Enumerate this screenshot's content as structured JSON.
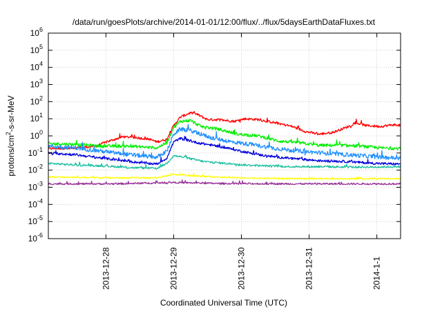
{
  "chart_data": {
    "type": "line",
    "title": "/data/run/goesPlots/archive/2014-01-01/12:00/flux/../flux/5daysEarthDataFluxes.txt",
    "xlabel": "Coordinated Universal Time (UTC)",
    "ylabel_base": "protons/cm",
    "ylabel_sup": "2",
    "ylabel_rest": "-s-sr-MeV",
    "y_scale": "log",
    "ylim_exp": [
      -6,
      6
    ],
    "y_ticks": [
      {
        "base": "10",
        "exp": "-6",
        "value": -6
      },
      {
        "base": "10",
        "exp": "-5",
        "value": -5
      },
      {
        "base": "10",
        "exp": "-4",
        "value": -4
      },
      {
        "base": "10",
        "exp": "-3",
        "value": -3
      },
      {
        "base": "10",
        "exp": "-2",
        "value": -2
      },
      {
        "base": "10",
        "exp": "-1",
        "value": -1
      },
      {
        "base": "10",
        "exp": "0",
        "value": 0
      },
      {
        "base": "10",
        "exp": "1",
        "value": 1
      },
      {
        "base": "10",
        "exp": "2",
        "value": 2
      },
      {
        "base": "10",
        "exp": "3",
        "value": 3
      },
      {
        "base": "10",
        "exp": "4",
        "value": 4
      },
      {
        "base": "10",
        "exp": "5",
        "value": 5
      },
      {
        "base": "10",
        "exp": "6",
        "value": 6
      }
    ],
    "xlim_days": [
      0,
      5.2
    ],
    "x_ticks": [
      {
        "label": "2013-12-28",
        "value": 0.85
      },
      {
        "label": "2013-12-29",
        "value": 1.85
      },
      {
        "label": "2013-12-30",
        "value": 2.85
      },
      {
        "label": "2013-12-31",
        "value": 3.85
      },
      {
        "label": "2014-1-1",
        "value": 4.85
      }
    ],
    "grid": true,
    "series": [
      {
        "color": "#ff0000",
        "noise": 0.07,
        "points": [
          [
            0,
            -0.75
          ],
          [
            0.4,
            -0.7
          ],
          [
            0.7,
            -0.6
          ],
          [
            0.9,
            -0.3
          ],
          [
            1.1,
            -0.05
          ],
          [
            1.3,
            -0.1
          ],
          [
            1.5,
            -0.2
          ],
          [
            1.6,
            -0.35
          ],
          [
            1.75,
            -0.2
          ],
          [
            1.85,
            0.6
          ],
          [
            1.95,
            1.1
          ],
          [
            2.1,
            1.35
          ],
          [
            2.2,
            1.25
          ],
          [
            2.35,
            0.95
          ],
          [
            2.5,
            0.95
          ],
          [
            2.75,
            0.85
          ],
          [
            2.9,
            1.0
          ],
          [
            3.1,
            0.95
          ],
          [
            3.3,
            0.8
          ],
          [
            3.6,
            0.55
          ],
          [
            3.8,
            0.25
          ],
          [
            4.0,
            0.1
          ],
          [
            4.2,
            0.2
          ],
          [
            4.4,
            0.5
          ],
          [
            4.55,
            0.75
          ],
          [
            4.7,
            0.6
          ],
          [
            4.9,
            0.55
          ],
          [
            5.1,
            0.65
          ],
          [
            5.2,
            0.6
          ]
        ]
      },
      {
        "color": "#00ee00",
        "noise": 0.09,
        "points": [
          [
            0,
            -0.45
          ],
          [
            0.4,
            -0.5
          ],
          [
            0.8,
            -0.6
          ],
          [
            1.2,
            -0.6
          ],
          [
            1.6,
            -0.7
          ],
          [
            1.75,
            -0.4
          ],
          [
            1.85,
            0.5
          ],
          [
            1.95,
            0.85
          ],
          [
            2.1,
            0.9
          ],
          [
            2.25,
            0.55
          ],
          [
            2.5,
            0.4
          ],
          [
            2.8,
            0.1
          ],
          [
            3.1,
            0.0
          ],
          [
            3.4,
            -0.3
          ],
          [
            3.7,
            -0.4
          ],
          [
            4.0,
            -0.55
          ],
          [
            4.3,
            -0.55
          ],
          [
            4.6,
            -0.6
          ],
          [
            4.9,
            -0.7
          ],
          [
            5.2,
            -0.75
          ]
        ]
      },
      {
        "color": "#1e90ff",
        "noise": 0.12,
        "points": [
          [
            0,
            -0.6
          ],
          [
            0.4,
            -0.7
          ],
          [
            0.8,
            -0.9
          ],
          [
            1.2,
            -1.1
          ],
          [
            1.6,
            -1.25
          ],
          [
            1.75,
            -0.9
          ],
          [
            1.85,
            0.1
          ],
          [
            1.95,
            0.4
          ],
          [
            2.1,
            0.3
          ],
          [
            2.4,
            -0.1
          ],
          [
            2.7,
            -0.35
          ],
          [
            3.0,
            -0.5
          ],
          [
            3.3,
            -0.7
          ],
          [
            3.6,
            -0.85
          ],
          [
            3.9,
            -0.95
          ],
          [
            4.2,
            -1.05
          ],
          [
            4.6,
            -1.15
          ],
          [
            4.9,
            -1.25
          ],
          [
            5.2,
            -1.3
          ]
        ]
      },
      {
        "color": "#0000dd",
        "noise": 0.07,
        "points": [
          [
            0,
            -1.0
          ],
          [
            0.4,
            -1.1
          ],
          [
            0.8,
            -1.3
          ],
          [
            1.2,
            -1.5
          ],
          [
            1.6,
            -1.65
          ],
          [
            1.75,
            -1.3
          ],
          [
            1.85,
            -0.35
          ],
          [
            1.95,
            -0.15
          ],
          [
            2.2,
            -0.4
          ],
          [
            2.5,
            -0.6
          ],
          [
            2.8,
            -0.85
          ],
          [
            3.1,
            -1.1
          ],
          [
            3.4,
            -1.25
          ],
          [
            3.7,
            -1.35
          ],
          [
            4.0,
            -1.45
          ],
          [
            4.4,
            -1.5
          ],
          [
            4.8,
            -1.6
          ],
          [
            5.2,
            -1.65
          ]
        ]
      },
      {
        "color": "#20c0a0",
        "noise": 0.06,
        "points": [
          [
            0,
            -1.6
          ],
          [
            0.4,
            -1.7
          ],
          [
            0.8,
            -1.75
          ],
          [
            1.2,
            -1.85
          ],
          [
            1.6,
            -1.9
          ],
          [
            1.75,
            -1.6
          ],
          [
            1.85,
            -1.15
          ],
          [
            2.0,
            -1.25
          ],
          [
            2.3,
            -1.5
          ],
          [
            2.6,
            -1.6
          ],
          [
            2.9,
            -1.7
          ],
          [
            3.2,
            -1.75
          ],
          [
            3.6,
            -1.8
          ],
          [
            4.0,
            -1.8
          ],
          [
            4.4,
            -1.82
          ],
          [
            4.8,
            -1.82
          ],
          [
            5.2,
            -1.8
          ]
        ]
      },
      {
        "color": "#ffff00",
        "noise": 0.04,
        "points": [
          [
            0,
            -2.4
          ],
          [
            0.8,
            -2.45
          ],
          [
            1.6,
            -2.45
          ],
          [
            1.85,
            -2.25
          ],
          [
            2.2,
            -2.35
          ],
          [
            2.8,
            -2.45
          ],
          [
            3.6,
            -2.5
          ],
          [
            4.4,
            -2.5
          ],
          [
            5.2,
            -2.5
          ]
        ]
      },
      {
        "color": "#993399",
        "noise": 0.05,
        "points": [
          [
            0,
            -2.8
          ],
          [
            1.0,
            -2.8
          ],
          [
            1.85,
            -2.72
          ],
          [
            2.5,
            -2.78
          ],
          [
            3.5,
            -2.8
          ],
          [
            4.5,
            -2.8
          ],
          [
            5.2,
            -2.8
          ]
        ]
      }
    ]
  }
}
